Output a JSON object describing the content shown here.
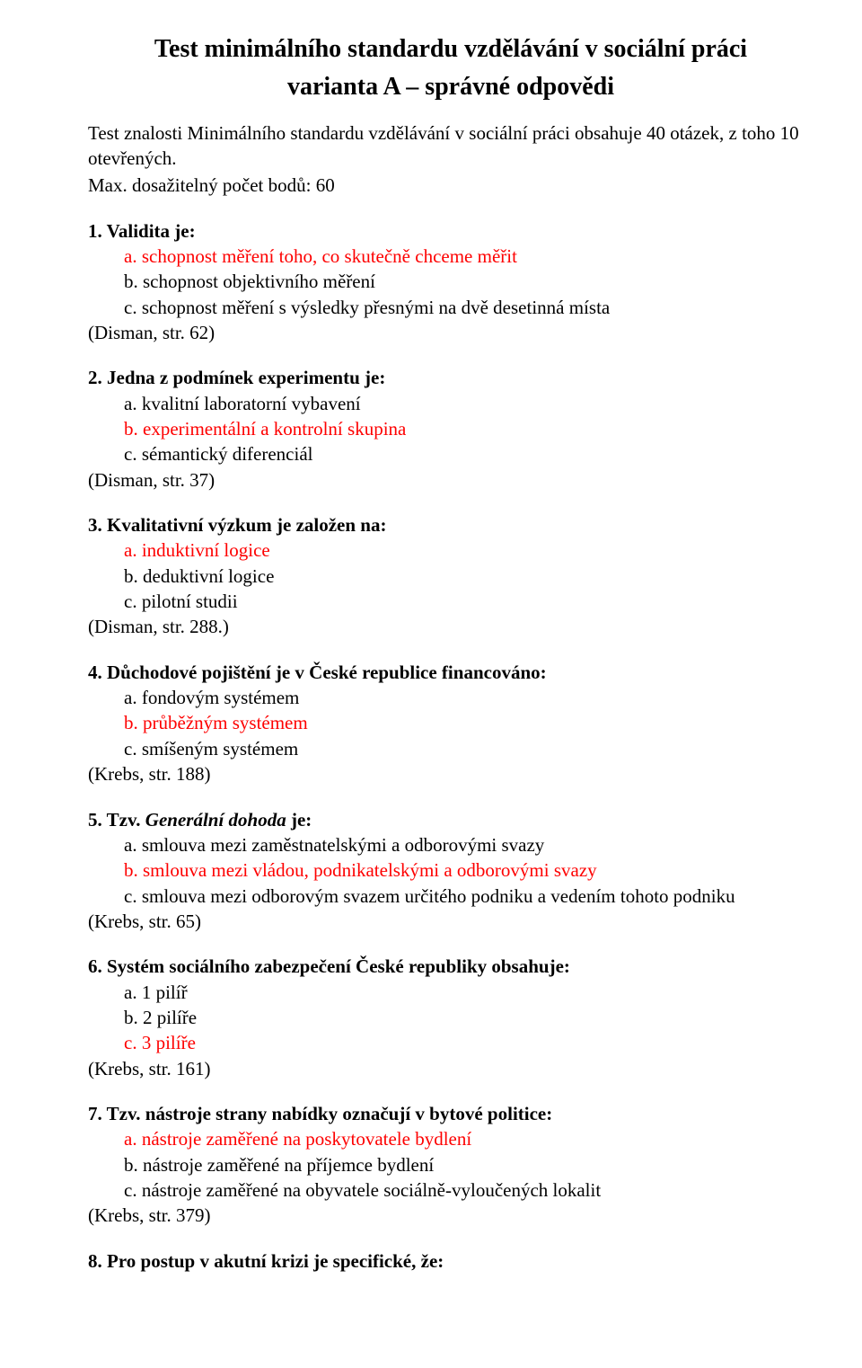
{
  "colors": {
    "correct": "#fe0000",
    "text": "#000000",
    "background": "#ffffff"
  },
  "typography": {
    "font_family": "Times New Roman",
    "body_fontsize_pt": 16,
    "title_fontsize_pt": 21,
    "title_weight": "bold",
    "question_weight": "bold"
  },
  "header": {
    "title_line1": "Test minimálního standardu vzdělávání v sociální práci",
    "title_line2": "varianta A – správné odpovědi"
  },
  "intro": {
    "line1": "Test znalosti Minimálního standardu vzdělávání v sociální práci obsahuje 40 otázek, z toho 10 otevřených.",
    "line2": "Max. dosažitelný počet bodů: 60"
  },
  "questions": [
    {
      "number": "1.",
      "text": "Validita je:",
      "ref": "(Disman, str. 62)",
      "options": [
        {
          "letter": "a.",
          "text": "schopnost měření toho, co skutečně chceme měřit",
          "correct": true
        },
        {
          "letter": "b.",
          "text": "schopnost objektivního měření",
          "correct": false
        },
        {
          "letter": "c.",
          "text": "schopnost měření s výsledky přesnými na dvě desetinná místa",
          "correct": false
        }
      ]
    },
    {
      "number": "2.",
      "text": "Jedna z podmínek experimentu je:",
      "ref": "(Disman, str. 37)",
      "options": [
        {
          "letter": "a.",
          "text": "kvalitní laboratorní vybavení",
          "correct": false
        },
        {
          "letter": "b.",
          "text": "experimentální a kontrolní skupina",
          "correct": true
        },
        {
          "letter": "c.",
          "text": "sémantický diferenciál",
          "correct": false
        }
      ]
    },
    {
      "number": "3.",
      "text": "Kvalitativní výzkum je založen na:",
      "ref": "(Disman, str. 288.)",
      "options": [
        {
          "letter": "a.",
          "text": "induktivní logice",
          "correct": true
        },
        {
          "letter": "b.",
          "text": "deduktivní logice",
          "correct": false
        },
        {
          "letter": "c.",
          "text": "pilotní studii",
          "correct": false
        }
      ]
    },
    {
      "number": "4.",
      "text": "Důchodové pojištění je v České republice financováno:",
      "ref": "(Krebs, str. 188)",
      "options": [
        {
          "letter": "a.",
          "text": "fondovým systémem",
          "correct": false
        },
        {
          "letter": "b.",
          "text": "průběžným systémem",
          "correct": true
        },
        {
          "letter": "c.",
          "text": "smíšeným systémem",
          "correct": false
        }
      ]
    },
    {
      "number": "5.",
      "prefix": "Tzv. ",
      "italic": "Generální dohoda",
      "suffix": " je:",
      "ref": "(Krebs, str. 65)",
      "options": [
        {
          "letter": "a.",
          "text": "smlouva mezi zaměstnatelskými a odborovými svazy",
          "correct": false
        },
        {
          "letter": "b.",
          "text": "smlouva mezi vládou, podnikatelskými a odborovými svazy",
          "correct": true
        },
        {
          "letter": "c.",
          "text": "smlouva mezi odborovým svazem určitého podniku a vedením tohoto podniku",
          "correct": false
        }
      ]
    },
    {
      "number": "6.",
      "text": "Systém sociálního zabezpečení České republiky obsahuje:",
      "ref": "(Krebs, str. 161)",
      "options": [
        {
          "letter": "a.",
          "text": "1 pilíř",
          "correct": false
        },
        {
          "letter": "b.",
          "text": "2 pilíře",
          "correct": false
        },
        {
          "letter": "c.",
          "text": "3 pilíře",
          "correct": true
        }
      ]
    },
    {
      "number": "7.",
      "text": "Tzv. nástroje strany nabídky označují v bytové politice:",
      "ref": "(Krebs, str. 379)",
      "options": [
        {
          "letter": "a.",
          "text": "nástroje zaměřené na poskytovatele bydlení",
          "correct": true
        },
        {
          "letter": "b.",
          "text": "nástroje zaměřené na příjemce bydlení",
          "correct": false
        },
        {
          "letter": "c.",
          "text": "nástroje zaměřené na obyvatele sociálně-vyloučených lokalit",
          "correct": false
        }
      ]
    },
    {
      "number": "8.",
      "text": "Pro postup v akutní krizi je specifické, že:",
      "ref": "",
      "options": []
    }
  ],
  "option_separator": "   "
}
